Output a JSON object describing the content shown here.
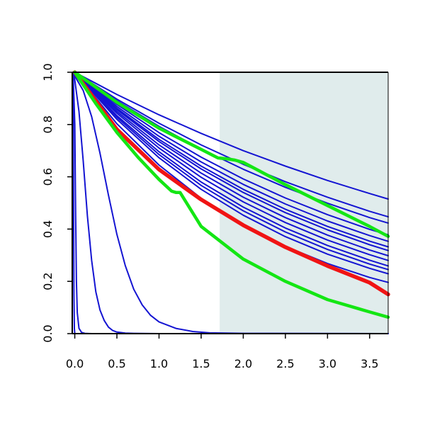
{
  "chart_data": {
    "type": "line",
    "title": "",
    "xlabel": "",
    "ylabel": "",
    "xlim": [
      -0.03,
      3.72
    ],
    "ylim": [
      0,
      1
    ],
    "x_ticks": [
      0,
      0.5,
      1,
      1.5,
      2,
      2.5,
      3,
      3.5
    ],
    "x_tick_labels": [
      "0.0",
      "0.5",
      "1.0",
      "1.5",
      "2.0",
      "2.5",
      "3.0",
      "3.5"
    ],
    "y_ticks": [
      0,
      0.2,
      0.4,
      0.6,
      0.8,
      1
    ],
    "y_tick_labels": [
      "0.0",
      "0.2",
      "0.4",
      "0.6",
      "0.8",
      "1.0"
    ],
    "shaded_region": {
      "x_start": 1.72,
      "x_end": 3.72,
      "color": "#e0ecec"
    },
    "grid": false,
    "legend": "none",
    "colors": {
      "blue": "#1414d2",
      "red": "#f01414",
      "green": "#14e614",
      "axis": "#000000"
    },
    "series": [
      {
        "color": "blue",
        "x": [
          0,
          0.5,
          1,
          1.5,
          2,
          2.5,
          3,
          3.5,
          3.72
        ],
        "y": [
          1,
          0.915,
          0.837,
          0.766,
          0.7,
          0.641,
          0.586,
          0.536,
          0.515
        ]
      },
      {
        "color": "blue",
        "x": [
          0,
          0.5,
          1,
          1.5,
          2,
          2.5,
          3,
          3.5,
          3.72
        ],
        "y": [
          1,
          0.897,
          0.805,
          0.722,
          0.648,
          0.581,
          0.522,
          0.468,
          0.447
        ]
      },
      {
        "color": "blue",
        "x": [
          0,
          0.5,
          1,
          1.5,
          2,
          2.5,
          3,
          3.5,
          3.72
        ],
        "y": [
          1,
          0.891,
          0.793,
          0.706,
          0.629,
          0.56,
          0.499,
          0.444,
          0.423
        ]
      },
      {
        "color": "blue",
        "x": [
          0,
          0.5,
          1,
          1.5,
          2,
          2.5,
          3,
          3.5,
          3.72
        ],
        "y": [
          1,
          0.877,
          0.769,
          0.675,
          0.592,
          0.519,
          0.455,
          0.399,
          0.378
        ]
      },
      {
        "color": "blue",
        "x": [
          0,
          0.5,
          1,
          1.5,
          2,
          2.5,
          3,
          3.5,
          3.72
        ],
        "y": [
          1,
          0.869,
          0.755,
          0.657,
          0.571,
          0.496,
          0.431,
          0.375,
          0.353
        ]
      },
      {
        "color": "blue",
        "x": [
          0,
          0.5,
          1,
          1.5,
          2,
          2.5,
          3,
          3.5,
          3.72
        ],
        "y": [
          1,
          0.862,
          0.743,
          0.641,
          0.552,
          0.476,
          0.41,
          0.354,
          0.332
        ]
      },
      {
        "color": "blue",
        "x": [
          0,
          0.5,
          1,
          1.5,
          2,
          2.5,
          3,
          3.5,
          3.72
        ],
        "y": [
          1,
          0.857,
          0.735,
          0.63,
          0.54,
          0.463,
          0.397,
          0.34,
          0.318
        ]
      },
      {
        "color": "blue",
        "x": [
          0,
          0.5,
          1,
          1.5,
          2,
          2.5,
          3,
          3.5,
          3.72
        ],
        "y": [
          1,
          0.85,
          0.722,
          0.614,
          0.522,
          0.444,
          0.377,
          0.32,
          0.298
        ]
      },
      {
        "color": "blue",
        "x": [
          0,
          0.5,
          1,
          1.5,
          2,
          2.5,
          3,
          3.5,
          3.72
        ],
        "y": [
          1,
          0.843,
          0.71,
          0.598,
          0.504,
          0.425,
          0.358,
          0.302,
          0.28
        ]
      },
      {
        "color": "blue",
        "x": [
          0,
          0.5,
          1,
          1.5,
          2,
          2.5,
          3,
          3.5,
          3.72
        ],
        "y": [
          1,
          0.834,
          0.696,
          0.58,
          0.484,
          0.404,
          0.337,
          0.281,
          0.259
        ]
      },
      {
        "color": "blue",
        "x": [
          0,
          0.5,
          1,
          1.5,
          2,
          2.5,
          3,
          3.5,
          3.72
        ],
        "y": [
          1,
          0.828,
          0.685,
          0.567,
          0.47,
          0.389,
          0.322,
          0.266,
          0.245
        ]
      },
      {
        "color": "blue",
        "x": [
          0,
          0.5,
          1,
          1.5,
          2,
          2.5,
          3,
          3.5,
          3.72
        ],
        "y": [
          1,
          0.82,
          0.673,
          0.552,
          0.453,
          0.371,
          0.304,
          0.25,
          0.229
        ]
      },
      {
        "color": "blue",
        "x": [
          0,
          0.5,
          1,
          1.5,
          2,
          2.5,
          3,
          3.5,
          3.72
        ],
        "y": [
          1,
          0.803,
          0.645,
          0.518,
          0.416,
          0.334,
          0.268,
          0.215,
          0.196
        ]
      },
      {
        "color": "blue",
        "x": [
          -0.02,
          0,
          0.1,
          0.2,
          0.3,
          0.4,
          0.5,
          0.6,
          0.7,
          0.8,
          0.9,
          1.0,
          1.2,
          1.4,
          1.6,
          2.0,
          3.72
        ],
        "y": [
          1,
          0.985,
          0.93,
          0.83,
          0.69,
          0.53,
          0.38,
          0.26,
          0.17,
          0.11,
          0.07,
          0.045,
          0.02,
          0.008,
          0.003,
          0.001,
          0
        ]
      },
      {
        "color": "blue",
        "x": [
          -0.02,
          0,
          0.05,
          0.1,
          0.15,
          0.2,
          0.25,
          0.3,
          0.35,
          0.4,
          0.45,
          0.5,
          0.6,
          0.7,
          1.0,
          3.72
        ],
        "y": [
          1,
          0.97,
          0.85,
          0.66,
          0.45,
          0.28,
          0.16,
          0.09,
          0.05,
          0.025,
          0.012,
          0.006,
          0.002,
          0.001,
          0,
          0
        ]
      },
      {
        "color": "blue",
        "x": [
          -0.02,
          0,
          0.01,
          0.02,
          0.03,
          0.05,
          0.08,
          0.12,
          0.2,
          3.72
        ],
        "y": [
          1,
          0.8,
          0.45,
          0.2,
          0.08,
          0.02,
          0.005,
          0.001,
          0,
          0
        ]
      },
      {
        "color": "blue",
        "x": [
          -0.02,
          -0.015,
          -0.01,
          -0.005,
          0,
          3.72
        ],
        "y": [
          1,
          0.55,
          0.15,
          0.02,
          0,
          0
        ]
      },
      {
        "color": "red",
        "x": [
          0,
          0.5,
          1,
          1.5,
          2,
          2.5,
          3,
          3.5,
          3.72
        ],
        "y": [
          1,
          0.781,
          0.628,
          0.513,
          0.415,
          0.331,
          0.259,
          0.195,
          0.15
        ]
      },
      {
        "color": "green",
        "x": [
          0,
          0.5,
          1,
          1.5,
          1.7,
          1.8,
          1.9,
          2.0,
          2.5,
          3,
          3.5,
          3.72
        ],
        "y": [
          1,
          0.885,
          0.786,
          0.705,
          0.672,
          0.669,
          0.664,
          0.655,
          0.57,
          0.49,
          0.41,
          0.372
        ]
      },
      {
        "color": "green",
        "x": [
          0,
          0.25,
          0.5,
          0.75,
          1.0,
          1.15,
          1.2,
          1.25,
          1.5,
          2.0,
          2.5,
          3.0,
          3.5,
          3.72
        ],
        "y": [
          1,
          0.88,
          0.77,
          0.675,
          0.59,
          0.545,
          0.54,
          0.54,
          0.41,
          0.285,
          0.2,
          0.13,
          0.083,
          0.063
        ]
      }
    ]
  }
}
